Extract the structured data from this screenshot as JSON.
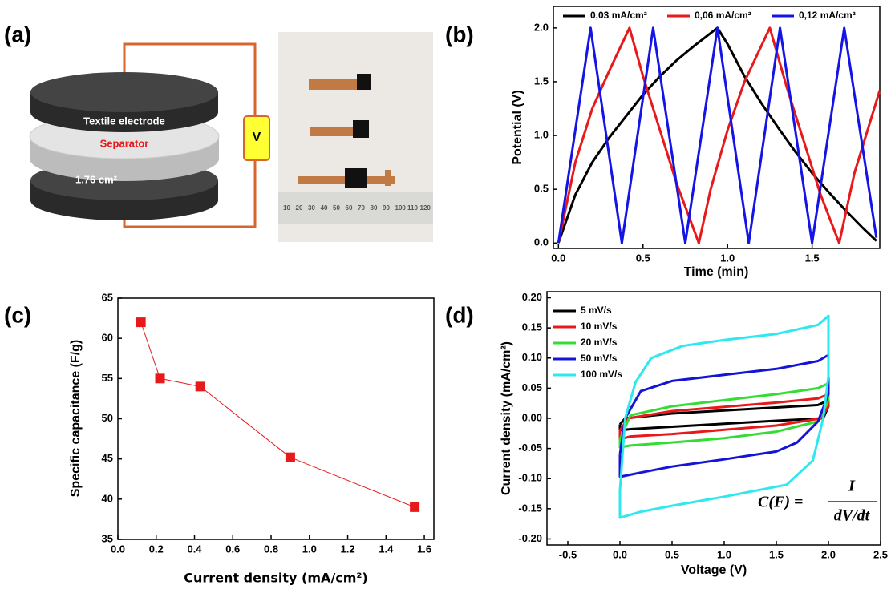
{
  "diagram": {
    "label": "(a)",
    "electrode_label": "Textile electrode",
    "separator_label": "Separator",
    "area_label": "1.76 cm²",
    "meter_label": "V",
    "ruler_labels": [
      "10",
      "20",
      "30",
      "40",
      "50",
      "60",
      "70",
      "80",
      "90",
      "100",
      "110",
      "120"
    ]
  },
  "chart_data": [
    {
      "type": "line",
      "panel": "(b)",
      "x_label": "Time (min)",
      "y_label": "Potential (V)",
      "legend": "top",
      "xlim": [
        -0.03,
        1.9
      ],
      "ylim": [
        -0.05,
        2.2
      ],
      "xticks": [
        {
          "value": 0,
          "label": "0.0"
        },
        {
          "value": 0.5,
          "label": "0.5"
        },
        {
          "value": 1,
          "label": "1.0"
        },
        {
          "value": 1.5,
          "label": "1.5"
        }
      ],
      "yticks": [
        {
          "value": 0,
          "label": "0.0"
        },
        {
          "value": 0.5,
          "label": "0.5"
        },
        {
          "value": 1,
          "label": "1.0"
        },
        {
          "value": 1.5,
          "label": "1.5"
        },
        {
          "value": 2,
          "label": "2.0"
        }
      ],
      "series": [
        {
          "name": "0,03 mA/cm²",
          "color": "#000000",
          "x": [
            0,
            0.1,
            0.2,
            0.3,
            0.4,
            0.5,
            0.6,
            0.7,
            0.8,
            0.94,
            1.0,
            1.1,
            1.2,
            1.3,
            1.4,
            1.5,
            1.6,
            1.7,
            1.8,
            1.88
          ],
          "values": [
            0,
            0.45,
            0.75,
            0.98,
            1.18,
            1.38,
            1.55,
            1.7,
            1.83,
            2.0,
            1.85,
            1.55,
            1.3,
            1.07,
            0.85,
            0.65,
            0.47,
            0.3,
            0.14,
            0.02
          ]
        },
        {
          "name": "0,06 mA/cm²",
          "color": "#e8191b",
          "x": [
            0,
            0.1,
            0.2,
            0.3,
            0.42,
            0.5,
            0.6,
            0.7,
            0.83,
            0.9,
            1.0,
            1.1,
            1.25,
            1.35,
            1.45,
            1.55,
            1.66,
            1.75,
            1.9
          ],
          "values": [
            0,
            0.75,
            1.25,
            1.6,
            2.0,
            1.55,
            1.05,
            0.55,
            0,
            0.5,
            1.05,
            1.5,
            2.0,
            1.45,
            0.95,
            0.45,
            0,
            0.65,
            1.42
          ]
        },
        {
          "name": "0,12 mA/cm²",
          "color": "#1414e6",
          "x": [
            0,
            0.19,
            0.375,
            0.56,
            0.75,
            0.94,
            1.125,
            1.31,
            1.5,
            1.69,
            1.88
          ],
          "values": [
            0,
            2,
            0,
            2,
            0,
            2,
            0,
            2,
            0,
            2,
            0.05
          ]
        }
      ]
    },
    {
      "type": "line",
      "panel": "(c)",
      "markers": true,
      "x_label": "Current density (mA/cm²)",
      "y_label": "Specific capacitance (F/g)",
      "xlim": [
        0,
        1.65
      ],
      "ylim": [
        35,
        65
      ],
      "xticks": [
        {
          "value": 0,
          "label": "0.0"
        },
        0.2,
        0.4,
        0.6,
        0.8,
        {
          "value": 1,
          "label": "1.0"
        },
        1.2,
        1.4,
        1.6
      ],
      "yticks": [
        35,
        40,
        45,
        50,
        55,
        60,
        65
      ],
      "series": [
        {
          "color": "#e8191b",
          "x": [
            0.12,
            0.22,
            0.43,
            0.9,
            1.55
          ],
          "values": [
            62,
            55,
            54,
            45.2,
            39
          ]
        }
      ]
    },
    {
      "type": "line",
      "panel": "(d)",
      "x_label": "Voltage (V)",
      "y_label": "Current density (mA/cm²)",
      "legend": "upper left",
      "xlim": [
        -0.7,
        2.5
      ],
      "ylim": [
        -0.21,
        0.21
      ],
      "xticks": [
        -0.5,
        {
          "value": 0,
          "label": "0.0"
        },
        0.5,
        {
          "value": 1,
          "label": "1.0"
        },
        1.5,
        {
          "value": 2,
          "label": "2.0"
        },
        2.5
      ],
      "yticks": [
        {
          "value": -0.2,
          "label": "-0.20"
        },
        -0.15,
        {
          "value": -0.1,
          "label": "-0.10"
        },
        -0.05,
        {
          "value": 0,
          "label": "0.00"
        },
        0.05,
        {
          "value": 0.1,
          "label": "0.10"
        },
        0.15,
        {
          "value": 0.2,
          "label": "0.20"
        }
      ],
      "annotation": {
        "lhs": "C(F) =",
        "numerator": "I",
        "denominator": "dV/dt"
      },
      "series": [
        {
          "name": "5 mV/s",
          "color": "#000000",
          "x": [
            0,
            0.05,
            0.5,
            1,
            1.5,
            1.9,
            2,
            2,
            1.95,
            1.5,
            1,
            0.5,
            0.1,
            0,
            0
          ],
          "values": [
            -0.01,
            0,
            0.008,
            0.013,
            0.018,
            0.022,
            0.03,
            0.02,
            0,
            -0.004,
            -0.009,
            -0.014,
            -0.018,
            -0.02,
            -0.01
          ]
        },
        {
          "name": "10 mV/s",
          "color": "#e8191b",
          "x": [
            0,
            0.08,
            0.5,
            1,
            1.5,
            1.9,
            2,
            2,
            1.93,
            1.5,
            1,
            0.5,
            0.1,
            0,
            0
          ],
          "values": [
            -0.02,
            0,
            0.012,
            0.019,
            0.026,
            0.033,
            0.04,
            0.02,
            0,
            -0.012,
            -0.019,
            -0.026,
            -0.03,
            -0.035,
            -0.02
          ]
        },
        {
          "name": "20 mV/s",
          "color": "#33dd33",
          "x": [
            0,
            0.1,
            0.5,
            1,
            1.5,
            1.9,
            2,
            2,
            1.9,
            1.5,
            1,
            0.5,
            0.1,
            0,
            0
          ],
          "values": [
            -0.035,
            0.005,
            0.02,
            0.03,
            0.04,
            0.05,
            0.058,
            0.03,
            -0.005,
            -0.022,
            -0.033,
            -0.04,
            -0.045,
            -0.048,
            -0.035
          ]
        },
        {
          "name": "50 mV/s",
          "color": "#1414d6",
          "x": [
            0,
            0.05,
            0.2,
            0.5,
            1,
            1.5,
            1.9,
            2,
            2,
            1.9,
            1.7,
            1.5,
            1,
            0.5,
            0.2,
            0,
            0
          ],
          "values": [
            -0.06,
            0,
            0.045,
            0.062,
            0.072,
            0.082,
            0.095,
            0.105,
            0.04,
            -0.005,
            -0.04,
            -0.055,
            -0.068,
            -0.08,
            -0.09,
            -0.097,
            -0.06
          ]
        },
        {
          "name": "100 mV/s",
          "color": "#2ee8f0",
          "x": [
            0,
            0.05,
            0.15,
            0.3,
            0.6,
            1,
            1.5,
            1.9,
            2,
            2,
            1.95,
            1.85,
            1.6,
            1,
            0.5,
            0.2,
            0,
            0
          ],
          "values": [
            -0.12,
            0,
            0.06,
            0.1,
            0.12,
            0.13,
            0.14,
            0.155,
            0.17,
            0.07,
            0,
            -0.07,
            -0.11,
            -0.13,
            -0.145,
            -0.155,
            -0.165,
            -0.12
          ]
        }
      ]
    }
  ]
}
